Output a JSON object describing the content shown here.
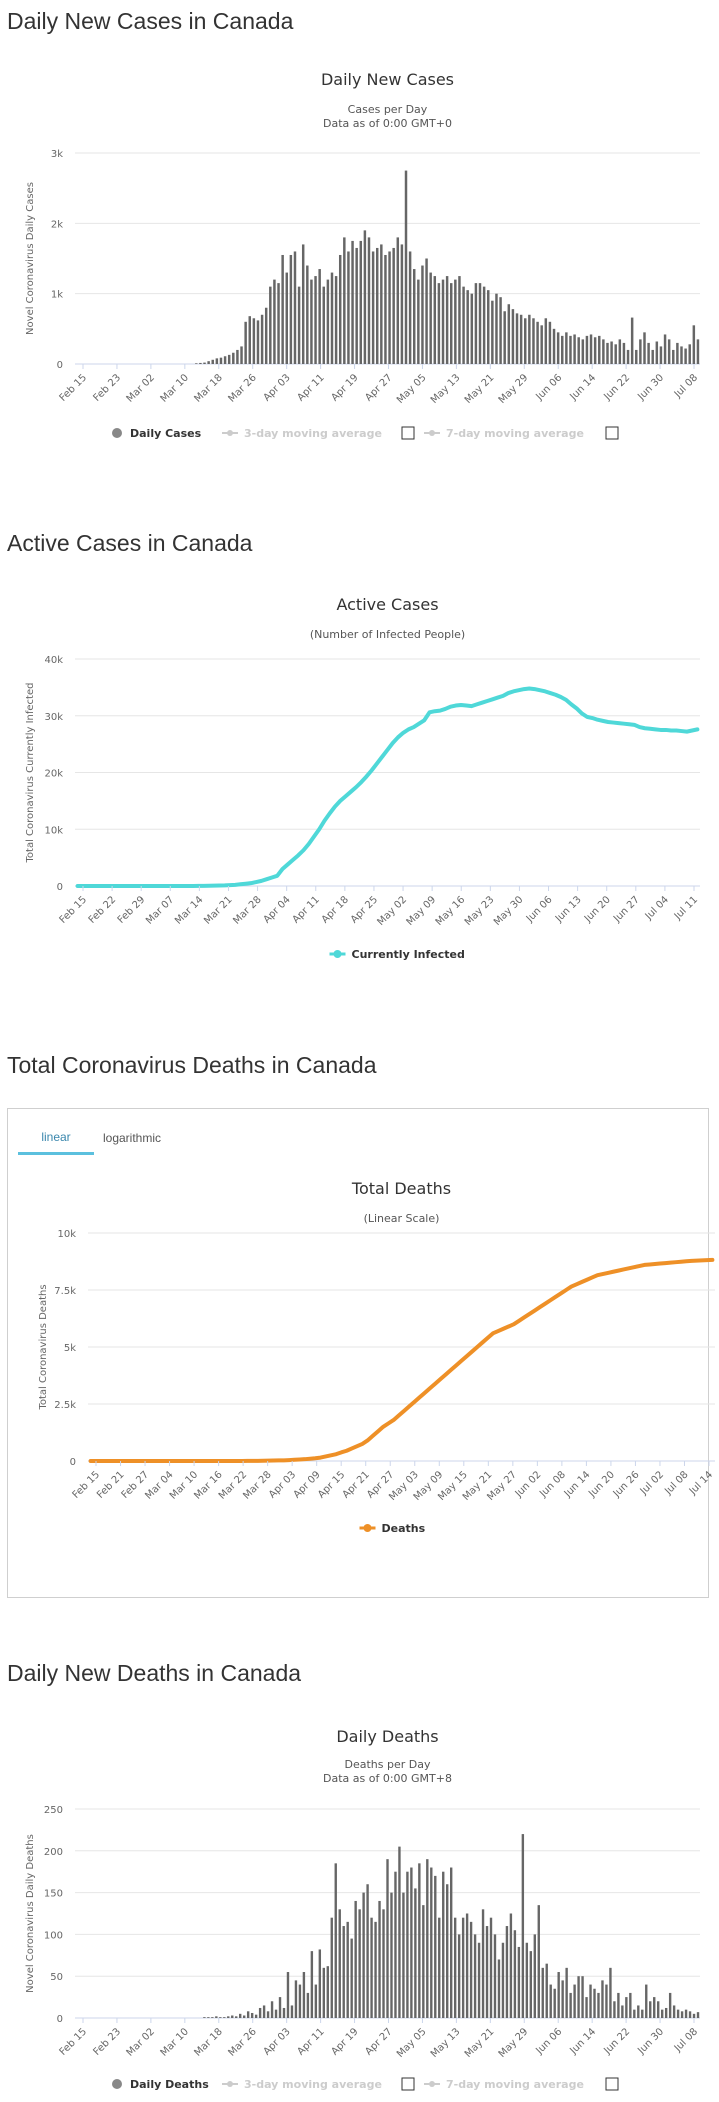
{
  "sections": {
    "daily_cases_title": "Daily New Cases in Canada",
    "active_title": "Active Cases in Canada",
    "deaths_title": "Total Coronavirus Deaths in Canada",
    "daily_deaths_title": "Daily New Deaths in Canada"
  },
  "tabs": {
    "linear": "linear",
    "logarithmic": "logarithmic"
  },
  "colors": {
    "bar": "#666666",
    "active": "#4fd8d8",
    "deaths": "#ee9027"
  },
  "chart_data": [
    {
      "id": "daily_cases",
      "type": "bar",
      "title": "Daily New Cases",
      "subtitle1": "Cases per Day",
      "subtitle2": "Data as of 0:00 GMT+0",
      "ylabel": "Novel Coronavirus Daily Cases",
      "ylim": [
        0,
        3000
      ],
      "yticks": [
        "0",
        "1k",
        "2k",
        "3k"
      ],
      "xticks": [
        "Feb 15",
        "Feb 23",
        "Mar 02",
        "Mar 10",
        "Mar 18",
        "Mar 26",
        "Apr 03",
        "Apr 11",
        "Apr 19",
        "Apr 27",
        "May 05",
        "May 13",
        "May 21",
        "May 29",
        "Jun 06",
        "Jun 14",
        "Jun 22",
        "Jun 30",
        "Jul 08"
      ],
      "start": "Feb 15",
      "legend": [
        "Daily Cases",
        "3-day moving average",
        "7-day moving average"
      ],
      "values": [
        0,
        0,
        0,
        0,
        0,
        0,
        0,
        0,
        0,
        0,
        0,
        0,
        0,
        0,
        0,
        0,
        0,
        0,
        0,
        0,
        0,
        0,
        0,
        0,
        0,
        0,
        0,
        0,
        0,
        10,
        15,
        20,
        40,
        60,
        80,
        90,
        110,
        130,
        160,
        200,
        250,
        600,
        680,
        650,
        620,
        700,
        800,
        1100,
        1200,
        1150,
        1550,
        1300,
        1550,
        1600,
        1100,
        1700,
        1400,
        1200,
        1250,
        1350,
        1100,
        1200,
        1300,
        1250,
        1550,
        1800,
        1600,
        1750,
        1650,
        1750,
        1900,
        1800,
        1600,
        1650,
        1700,
        1550,
        1600,
        1650,
        1800,
        1700,
        2750,
        1600,
        1350,
        1200,
        1400,
        1500,
        1300,
        1250,
        1150,
        1200,
        1250,
        1150,
        1200,
        1250,
        1100,
        1050,
        1000,
        1150,
        1150,
        1100,
        1050,
        900,
        1000,
        950,
        750,
        850,
        780,
        720,
        700,
        650,
        700,
        650,
        600,
        550,
        650,
        600,
        500,
        450,
        400,
        450,
        400,
        420,
        380,
        350,
        400,
        420,
        380,
        400,
        350,
        300,
        320,
        280,
        350,
        300,
        200,
        660,
        200,
        350,
        450,
        300,
        200,
        320,
        250,
        420,
        350,
        200,
        300,
        250,
        220,
        280,
        550,
        350
      ]
    },
    {
      "id": "active",
      "type": "line",
      "title": "Active Cases",
      "subtitle1": "(Number of Infected People)",
      "ylabel": "Total Coronavirus Currently Infected",
      "ylim": [
        0,
        40000
      ],
      "yticks": [
        "0",
        "10k",
        "20k",
        "30k",
        "40k"
      ],
      "xticks": [
        "Feb 15",
        "Feb 22",
        "Feb 29",
        "Mar 07",
        "Mar 14",
        "Mar 21",
        "Mar 28",
        "Apr 04",
        "Apr 11",
        "Apr 18",
        "Apr 25",
        "May 02",
        "May 09",
        "May 16",
        "May 23",
        "May 30",
        "Jun 06",
        "Jun 13",
        "Jun 20",
        "Jun 27",
        "Jul 04",
        "Jul 11"
      ],
      "legend": [
        "Currently Infected"
      ],
      "values": [
        0,
        0,
        0,
        0,
        0,
        0,
        0,
        0,
        0,
        0,
        0,
        0,
        0,
        0,
        0,
        0,
        0,
        0,
        0,
        0,
        0,
        0,
        10,
        20,
        30,
        40,
        60,
        80,
        100,
        150,
        200,
        300,
        400,
        500,
        700,
        900,
        1200,
        1500,
        1800,
        3000,
        3800,
        4600,
        5400,
        6300,
        7400,
        8700,
        10000,
        11500,
        12800,
        14000,
        15000,
        15800,
        16600,
        17400,
        18300,
        19300,
        20400,
        21600,
        22800,
        24000,
        25200,
        26200,
        27000,
        27600,
        28000,
        28600,
        29200,
        30600,
        30800,
        30900,
        31200,
        31600,
        31800,
        31900,
        31800,
        31700,
        32000,
        32300,
        32600,
        32900,
        33200,
        33500,
        34000,
        34300,
        34500,
        34700,
        34800,
        34700,
        34500,
        34300,
        34000,
        33700,
        33300,
        32800,
        32000,
        31300,
        30400,
        29800,
        29600,
        29300,
        29100,
        28900,
        28800,
        28700,
        28600,
        28500,
        28400,
        28000,
        27800,
        27700,
        27600,
        27500,
        27500,
        27400,
        27400,
        27300,
        27200,
        27400,
        27600
      ]
    },
    {
      "id": "deaths",
      "type": "line",
      "title": "Total Deaths",
      "subtitle1": "(Linear Scale)",
      "ylabel": "Total Coronavirus Deaths",
      "ylim": [
        0,
        10000
      ],
      "yticks": [
        "0",
        "2.5k",
        "5k",
        "7.5k",
        "10k"
      ],
      "xticks": [
        "Feb 15",
        "Feb 21",
        "Feb 27",
        "Mar 04",
        "Mar 10",
        "Mar 16",
        "Mar 22",
        "Mar 28",
        "Apr 03",
        "Apr 09",
        "Apr 15",
        "Apr 21",
        "Apr 27",
        "May 03",
        "May 09",
        "May 15",
        "May 21",
        "May 27",
        "Jun 02",
        "Jun 08",
        "Jun 14",
        "Jun 20",
        "Jun 26",
        "Jul 02",
        "Jul 08",
        "Jul 14"
      ],
      "legend": [
        "Deaths"
      ],
      "values": [
        0,
        0,
        0,
        0,
        0,
        0,
        0,
        0,
        0,
        0,
        0,
        0,
        0,
        0,
        0,
        0,
        0,
        0,
        0,
        0,
        0,
        0,
        0,
        0,
        1,
        1,
        1,
        1,
        1,
        2,
        3,
        5,
        8,
        12,
        15,
        20,
        25,
        30,
        40,
        55,
        65,
        80,
        100,
        120,
        150,
        200,
        250,
        300,
        380,
        450,
        550,
        650,
        750,
        900,
        1100,
        1300,
        1500,
        1650,
        1800,
        2000,
        2200,
        2400,
        2600,
        2800,
        3000,
        3200,
        3400,
        3600,
        3800,
        4000,
        4200,
        4400,
        4600,
        4800,
        5000,
        5200,
        5400,
        5600,
        5700,
        5800,
        5900,
        6000,
        6150,
        6300,
        6450,
        6600,
        6750,
        6900,
        7050,
        7200,
        7350,
        7500,
        7650,
        7750,
        7850,
        7950,
        8050,
        8150,
        8200,
        8250,
        8300,
        8350,
        8400,
        8450,
        8500,
        8550,
        8600,
        8620,
        8640,
        8660,
        8680,
        8700,
        8720,
        8740,
        8760,
        8780,
        8790,
        8800,
        8810,
        8820
      ]
    },
    {
      "id": "daily_deaths",
      "type": "bar",
      "title": "Daily Deaths",
      "subtitle1": "Deaths per Day",
      "subtitle2": "Data as of 0:00 GMT+8",
      "ylabel": "Novel Coronavirus Daily Deaths",
      "ylim": [
        0,
        250
      ],
      "yticks": [
        "0",
        "50",
        "100",
        "150",
        "200",
        "250"
      ],
      "xticks": [
        "Feb 15",
        "Feb 23",
        "Mar 02",
        "Mar 10",
        "Mar 18",
        "Mar 26",
        "Apr 03",
        "Apr 11",
        "Apr 19",
        "Apr 27",
        "May 05",
        "May 13",
        "May 21",
        "May 29",
        "Jun 06",
        "Jun 14",
        "Jun 22",
        "Jun 30",
        "Jul 08"
      ],
      "legend": [
        "Daily Deaths",
        "3-day moving average",
        "7-day moving average"
      ],
      "values": [
        0,
        0,
        0,
        0,
        0,
        0,
        0,
        0,
        0,
        0,
        0,
        0,
        0,
        0,
        0,
        0,
        0,
        0,
        0,
        0,
        0,
        0,
        0,
        0,
        0,
        0,
        0,
        0,
        0,
        0,
        0,
        0,
        1,
        1,
        1,
        2,
        1,
        1,
        2,
        3,
        2,
        5,
        3,
        8,
        6,
        4,
        12,
        15,
        8,
        20,
        10,
        25,
        12,
        55,
        15,
        45,
        40,
        55,
        30,
        80,
        40,
        82,
        60,
        62,
        120,
        185,
        130,
        110,
        115,
        95,
        140,
        130,
        150,
        160,
        120,
        115,
        140,
        130,
        190,
        150,
        175,
        205,
        150,
        175,
        180,
        155,
        185,
        135,
        190,
        180,
        170,
        120,
        175,
        160,
        180,
        120,
        100,
        120,
        125,
        115,
        100,
        90,
        130,
        110,
        120,
        100,
        70,
        90,
        110,
        125,
        105,
        85,
        220,
        90,
        80,
        100,
        135,
        60,
        65,
        40,
        35,
        55,
        45,
        60,
        30,
        40,
        50,
        50,
        25,
        40,
        35,
        30,
        45,
        40,
        60,
        20,
        30,
        15,
        25,
        30,
        10,
        15,
        10,
        40,
        20,
        25,
        20,
        10,
        12,
        30,
        15,
        10,
        8,
        10,
        8,
        5,
        7
      ]
    }
  ]
}
